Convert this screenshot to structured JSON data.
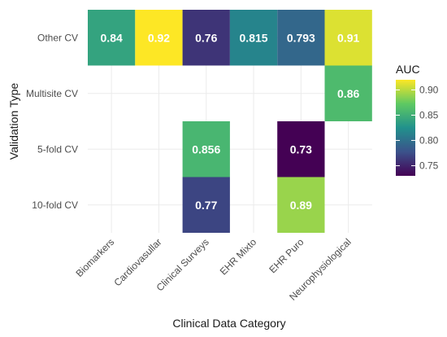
{
  "chart_data": {
    "type": "heatmap",
    "xlabel": "Clinical Data Category",
    "ylabel": "Validation Type",
    "x_categories": [
      "Biomarkers",
      "Cardiovasullar",
      "Clinical Surveys",
      "EHR Mixto",
      "EHR Puro",
      "Neurophysiological"
    ],
    "y_categories": [
      "Other CV",
      "Multisite CV",
      "5-fold CV",
      "10-fold CV"
    ],
    "cells": [
      {
        "x": "Biomarkers",
        "y": "Other CV",
        "value": 0.84,
        "label": "0.84"
      },
      {
        "x": "Cardiovasullar",
        "y": "Other CV",
        "value": 0.92,
        "label": "0.92"
      },
      {
        "x": "Clinical Surveys",
        "y": "Other CV",
        "value": 0.76,
        "label": "0.76"
      },
      {
        "x": "EHR Mixto",
        "y": "Other CV",
        "value": 0.815,
        "label": "0.815"
      },
      {
        "x": "EHR Puro",
        "y": "Other CV",
        "value": 0.793,
        "label": "0.793"
      },
      {
        "x": "Neurophysiological",
        "y": "Other CV",
        "value": 0.91,
        "label": "0.91"
      },
      {
        "x": "Neurophysiological",
        "y": "Multisite CV",
        "value": 0.86,
        "label": "0.86"
      },
      {
        "x": "Clinical Surveys",
        "y": "5-fold CV",
        "value": 0.856,
        "label": "0.856"
      },
      {
        "x": "EHR Puro",
        "y": "5-fold CV",
        "value": 0.73,
        "label": "0.73"
      },
      {
        "x": "Clinical Surveys",
        "y": "10-fold CV",
        "value": 0.77,
        "label": "0.77"
      },
      {
        "x": "EHR Puro",
        "y": "10-fold CV",
        "value": 0.89,
        "label": "0.89"
      }
    ],
    "legend": {
      "title": "AUC",
      "ticks": [
        0.75,
        0.8,
        0.85,
        0.9
      ],
      "tick_labels": [
        "0.75",
        "0.80",
        "0.85",
        "0.90"
      ],
      "range": [
        0.73,
        0.92
      ],
      "palette": "viridis",
      "placement": "right"
    },
    "grid": true
  }
}
